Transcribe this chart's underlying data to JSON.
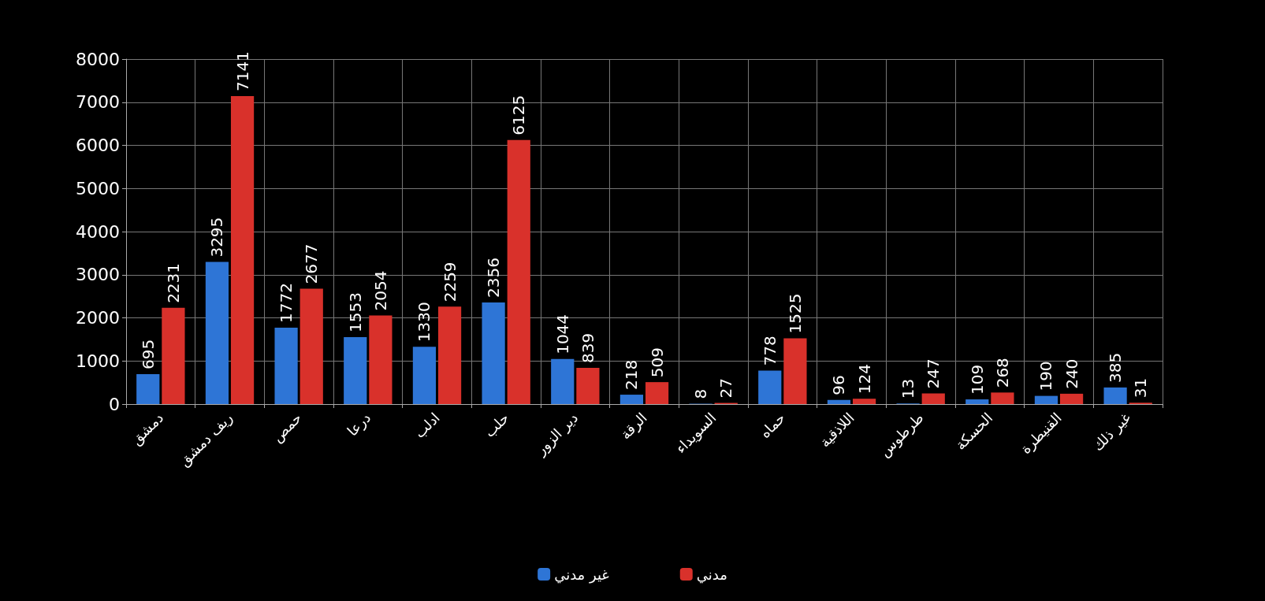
{
  "chart_data": {
    "type": "bar",
    "categories": [
      "دمشق",
      "ريف دمشق",
      "حمص",
      "درعا",
      "ادلب",
      "حلب",
      "دير الزور",
      "الرقة",
      "السويداء",
      "حماه",
      "اللاذقية",
      "طرطوس",
      "الحسكة",
      "القنيطرة",
      "غير ذلك"
    ],
    "series": [
      {
        "name": "غير مدني",
        "color": "#2e75d6",
        "values": [
          695,
          3295,
          1772,
          1553,
          1330,
          2356,
          1044,
          218,
          8,
          778,
          96,
          13,
          109,
          190,
          385
        ]
      },
      {
        "name": "مدني",
        "color": "#d9312b",
        "values": [
          2231,
          7141,
          2677,
          2054,
          2259,
          6125,
          839,
          509,
          27,
          1525,
          124,
          247,
          268,
          240,
          31
        ]
      }
    ],
    "ylim": [
      0,
      8000
    ],
    "yticks": [
      0,
      1000,
      2000,
      3000,
      4000,
      5000,
      6000,
      7000,
      8000
    ],
    "grid": true,
    "legend": "bottom",
    "data_labels": true
  }
}
